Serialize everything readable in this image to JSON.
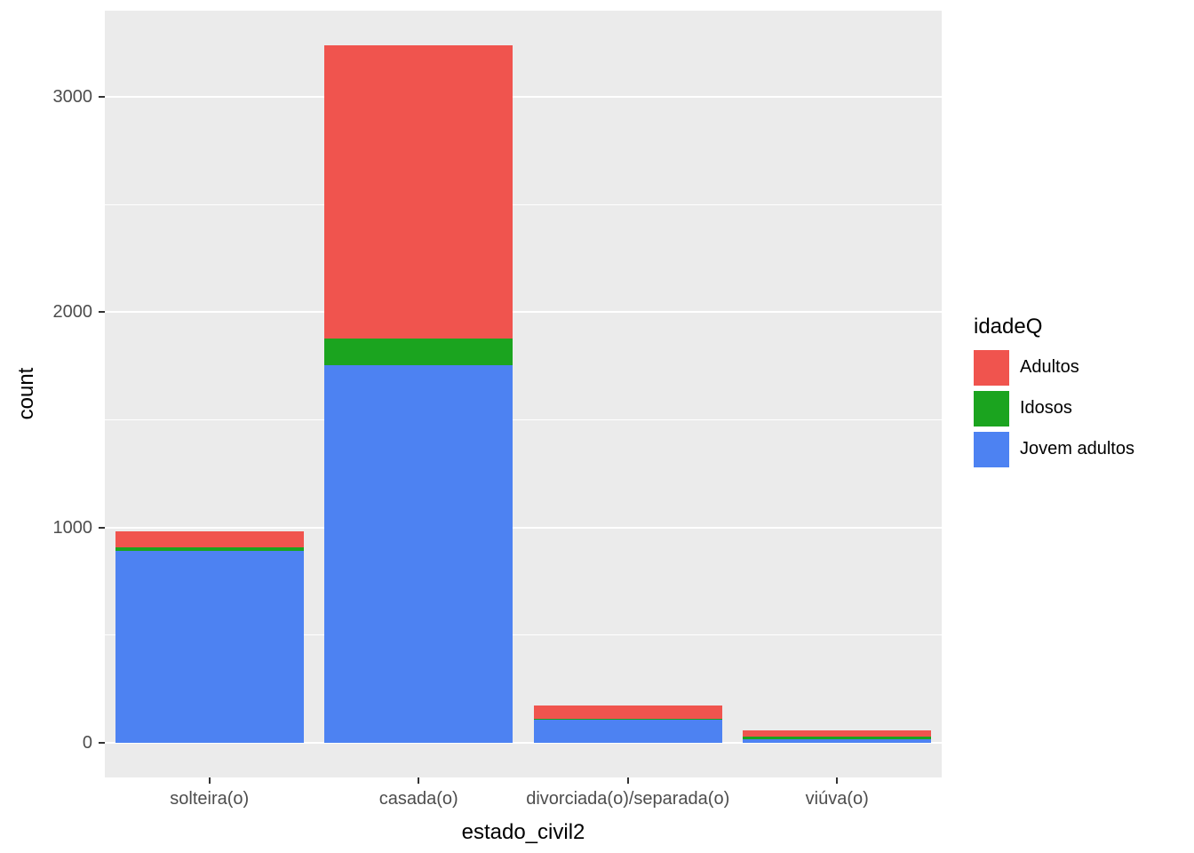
{
  "colors": {
    "panel_background": "#EBEBEB",
    "gridline": "#FFFFFF",
    "tick_text": "#4D4D4D",
    "axis_title_text": "#000000",
    "figure_background": "#FFFFFF"
  },
  "chart_data": {
    "type": "bar",
    "stacked": true,
    "title": "",
    "xlabel": "estado_civil2",
    "ylabel": "count",
    "legend_title": "idadeQ",
    "legend_position": "right",
    "grid": true,
    "categories": [
      "solteira(o)",
      "casada(o)",
      "divorciada(o)/separada(o)",
      "viúva(o)"
    ],
    "series": [
      {
        "name": "Adultos",
        "color": "#F0544E",
        "values": [
          72,
          1360,
          62,
          30
        ]
      },
      {
        "name": "Idosos",
        "color": "#1BA41F",
        "values": [
          18,
          125,
          4,
          14
        ]
      },
      {
        "name": "Jovem adultos",
        "color": "#4D82F2",
        "values": [
          890,
          1755,
          105,
          14
        ]
      }
    ],
    "stack_order_bottom_to_top": [
      "Jovem adultos",
      "Idosos",
      "Adultos"
    ],
    "totals": [
      980,
      3240,
      171,
      58
    ],
    "yticks": [
      0,
      1000,
      2000,
      3000
    ],
    "yticks_minor": [
      500,
      1500,
      2500
    ],
    "ylim": [
      0,
      3300
    ]
  }
}
